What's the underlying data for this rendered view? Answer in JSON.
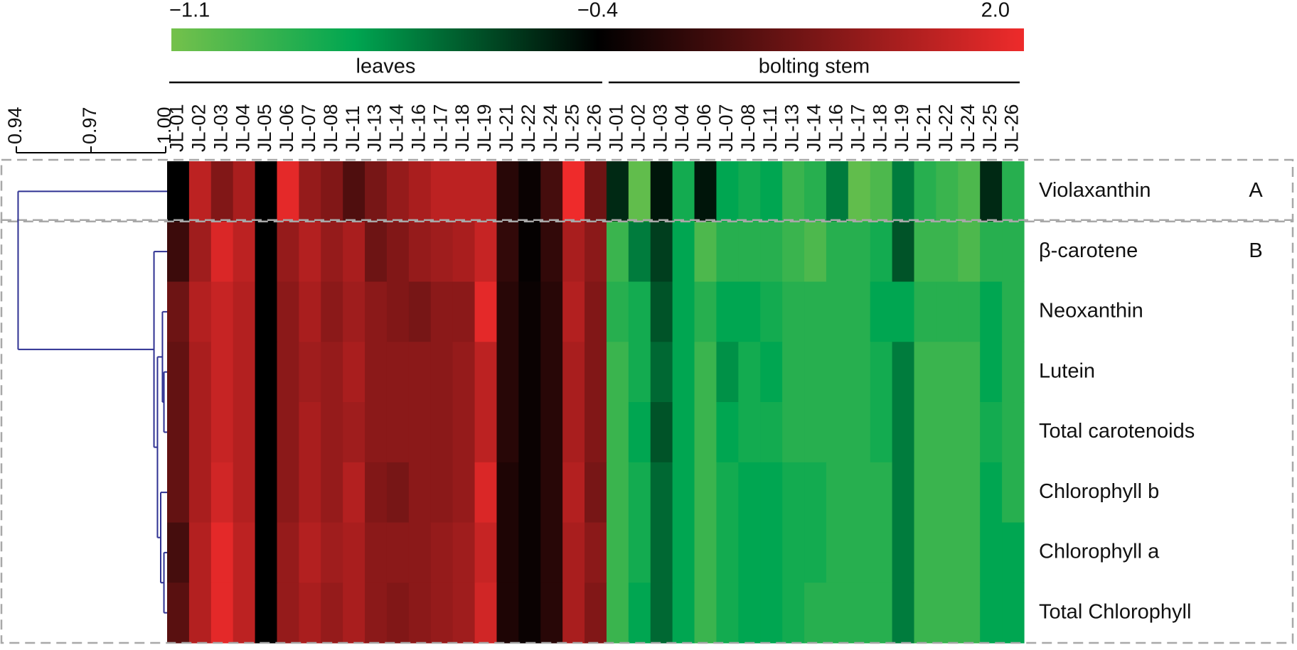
{
  "chart_data": {
    "type": "heatmap",
    "colorscale": {
      "ticks": [
        {
          "value": -1.1,
          "label": "−1.1"
        },
        {
          "value": -0.4,
          "label": "−0.4"
        },
        {
          "value": 2,
          "label": "2.0"
        }
      ],
      "stops": [
        {
          "value": -1.1,
          "color": "#74c14b"
        },
        {
          "value": -0.8,
          "color": "#00a651"
        },
        {
          "value": -0.4,
          "color": "#000000"
        },
        {
          "value": 2,
          "color": "#ee2b2b"
        }
      ]
    },
    "x_groups": [
      {
        "label": "leaves",
        "categories": [
          "JL-01",
          "JL-02",
          "JL-03",
          "JL-04",
          "JL-05",
          "JL-06",
          "JL-07",
          "JL-08",
          "JL-11",
          "JL-13",
          "JL-14",
          "JL-16",
          "JL-17",
          "JL-18",
          "JL-19",
          "JL-21",
          "JL-22",
          "JL-24",
          "JL-25",
          "JL-26"
        ]
      },
      {
        "label": "bolting stem",
        "categories": [
          "JL-01",
          "JL-02",
          "JL-03",
          "JL-04",
          "JL-06",
          "JL-07",
          "JL-08",
          "JL-11",
          "JL-13",
          "JL-14",
          "JL-16",
          "JL-17",
          "JL-18",
          "JL-19",
          "JL-21",
          "JL-22",
          "JL-24",
          "JL-25",
          "JL-26"
        ]
      }
    ],
    "rows": [
      "Violaxanthin",
      "β-carotene",
      "Neoxanthin",
      "Lutein",
      "Total carotenoids",
      "Chlorophyll b",
      "Chlorophyll a",
      "Total Chlorophyll"
    ],
    "values": [
      [
        -0.4,
        1.5,
        0.9,
        1.3,
        -0.4,
        1.9,
        1.1,
        0.9,
        0.4,
        0.8,
        1.1,
        1.3,
        1.5,
        1.5,
        1.5,
        0.0,
        -0.3,
        0.3,
        2.0,
        0.7,
        -0.5,
        -1.05,
        -0.45,
        -0.85,
        -0.45,
        -0.8,
        -0.85,
        -0.8,
        -0.95,
        -0.9,
        -0.7,
        -1.05,
        -1.0,
        -0.7,
        -0.9,
        -0.95,
        -1.0,
        -0.5,
        -0.9
      ],
      [
        0.2,
        1.2,
        1.8,
        1.5,
        -0.4,
        1.1,
        1.4,
        1.1,
        1.3,
        0.7,
        0.9,
        1.1,
        1.2,
        1.3,
        1.6,
        0.1,
        -0.35,
        0.1,
        1.3,
        1.0,
        -0.95,
        -0.7,
        -0.55,
        -0.8,
        -1.0,
        -0.9,
        -0.9,
        -0.9,
        -0.95,
        -1.0,
        -0.9,
        -0.9,
        -0.85,
        -0.6,
        -0.95,
        -0.95,
        -1.0,
        -0.9,
        -0.9
      ],
      [
        0.7,
        1.4,
        1.6,
        1.4,
        -0.4,
        1.0,
        1.3,
        1.0,
        1.2,
        1.0,
        0.9,
        0.8,
        1.0,
        1.0,
        1.9,
        0.0,
        -0.3,
        0.0,
        1.4,
        0.9,
        -0.9,
        -0.85,
        -0.6,
        -0.8,
        -0.9,
        -0.8,
        -0.8,
        -0.85,
        -0.9,
        -0.9,
        -0.9,
        -0.9,
        -0.8,
        -0.8,
        -0.9,
        -0.9,
        -0.9,
        -0.8,
        -0.9
      ],
      [
        0.6,
        1.3,
        1.6,
        1.4,
        -0.4,
        1.0,
        1.2,
        1.1,
        1.3,
        1.0,
        1.0,
        1.0,
        1.0,
        1.1,
        1.5,
        0.0,
        -0.3,
        0.0,
        1.3,
        0.9,
        -0.95,
        -0.85,
        -0.65,
        -0.8,
        -0.95,
        -0.75,
        -0.85,
        -0.8,
        -0.9,
        -0.9,
        -0.9,
        -0.9,
        -0.85,
        -0.7,
        -0.95,
        -0.95,
        -0.95,
        -0.8,
        -0.9
      ],
      [
        0.6,
        1.3,
        1.6,
        1.4,
        -0.4,
        1.0,
        1.3,
        1.1,
        1.2,
        1.0,
        1.0,
        1.0,
        1.0,
        1.1,
        1.5,
        0.0,
        -0.3,
        0.0,
        1.3,
        0.9,
        -0.95,
        -0.8,
        -0.6,
        -0.8,
        -0.95,
        -0.8,
        -0.85,
        -0.85,
        -0.9,
        -0.9,
        -0.9,
        -0.9,
        -0.85,
        -0.7,
        -0.95,
        -0.95,
        -0.95,
        -0.85,
        -0.9
      ],
      [
        0.6,
        1.3,
        1.7,
        1.4,
        -0.4,
        1.0,
        1.3,
        1.1,
        1.4,
        0.9,
        0.8,
        1.0,
        1.0,
        1.1,
        1.8,
        -0.1,
        -0.3,
        0.0,
        1.4,
        0.8,
        -0.95,
        -0.85,
        -0.65,
        -0.8,
        -0.95,
        -0.85,
        -0.8,
        -0.8,
        -0.85,
        -0.85,
        -0.9,
        -0.9,
        -0.9,
        -0.7,
        -0.95,
        -0.95,
        -0.95,
        -0.8,
        -0.9
      ],
      [
        0.3,
        1.4,
        1.9,
        1.5,
        -0.4,
        1.1,
        1.4,
        1.2,
        1.3,
        1.0,
        1.0,
        1.0,
        1.1,
        1.2,
        1.6,
        -0.1,
        -0.3,
        0.0,
        1.3,
        1.0,
        -0.95,
        -0.85,
        -0.65,
        -0.8,
        -0.95,
        -0.85,
        -0.8,
        -0.8,
        -0.85,
        -0.85,
        -0.9,
        -0.9,
        -0.9,
        -0.7,
        -0.95,
        -0.95,
        -0.95,
        -0.8,
        -0.8
      ],
      [
        0.5,
        1.4,
        1.9,
        1.5,
        -0.4,
        1.1,
        1.3,
        1.1,
        1.3,
        1.0,
        0.9,
        1.0,
        1.1,
        1.2,
        1.7,
        -0.1,
        -0.3,
        0.0,
        1.3,
        0.9,
        -0.95,
        -0.8,
        -0.65,
        -0.8,
        -0.95,
        -0.85,
        -0.8,
        -0.8,
        -0.85,
        -0.9,
        -0.9,
        -0.9,
        -0.9,
        -0.7,
        -0.95,
        -0.95,
        -0.95,
        -0.8,
        -0.8
      ]
    ],
    "clusters": [
      {
        "label": "A",
        "members": [
          "Violaxanthin"
        ]
      },
      {
        "label": "B",
        "members": [
          "β-carotene",
          "Neoxanthin",
          "Lutein",
          "Total carotenoids",
          "Chlorophyll b",
          "Chlorophyll a",
          "Total Chlorophyll"
        ]
      }
    ],
    "dendrogram": {
      "color": "#2e3192",
      "xlim": [
        0.94,
        1.0
      ],
      "xticks": [
        0.94,
        0.97,
        {
          "value": 1,
          "label": "1.00"
        }
      ],
      "tree": {
        "height": 0.9407,
        "children": [
          "Violaxanthin",
          {
            "height": 0.9953,
            "children": [
              "β-carotene",
              {
                "height": 0.9967,
                "children": [
                  {
                    "height": 0.9987,
                    "children": [
                      "Neoxanthin",
                      {
                        "height": 0.9993,
                        "children": [
                          "Lutein",
                          "Total carotenoids"
                        ]
                      }
                    ]
                  },
                  {
                    "height": 0.998,
                    "children": [
                      "Chlorophyll b",
                      {
                        "height": 0.9993,
                        "children": [
                          "Chlorophyll a",
                          "Total Chlorophyll"
                        ]
                      }
                    ]
                  }
                ]
              }
            ]
          }
        ]
      }
    }
  }
}
